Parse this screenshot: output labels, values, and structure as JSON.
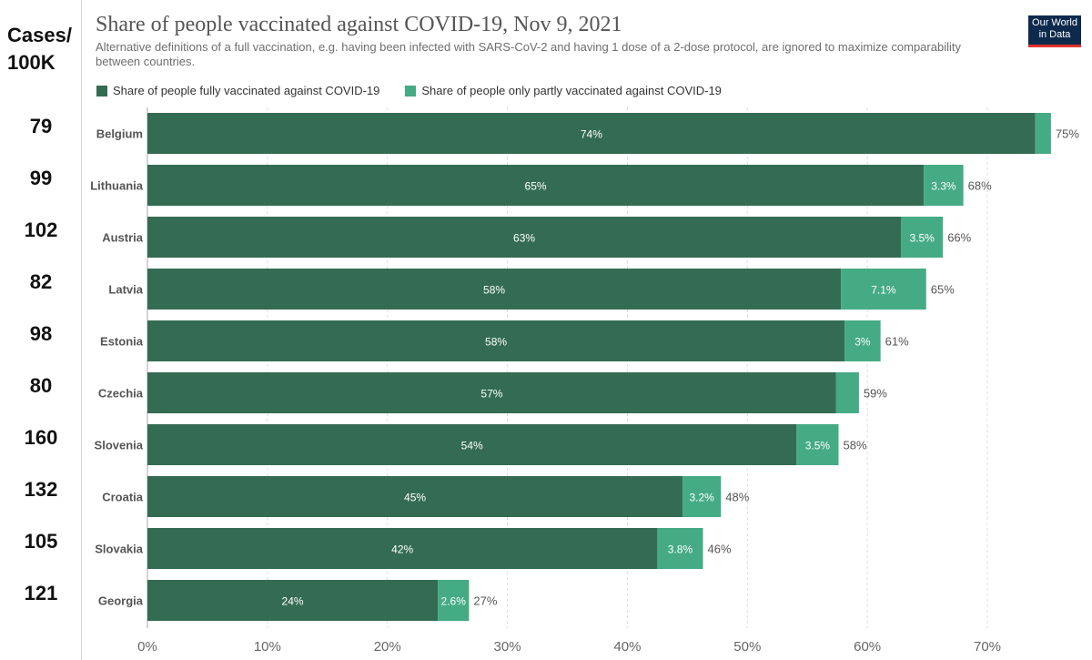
{
  "cases_panel": {
    "header": "Cases/\n100K",
    "values": [
      "79",
      "99",
      "102",
      "82",
      "98",
      "80",
      "160",
      "132",
      "105",
      "121"
    ]
  },
  "header": {
    "title": "Share of people vaccinated against COVID-19, Nov 9, 2021",
    "subtitle": "Alternative definitions of a full vaccination, e.g. having been infected with SARS-CoV-2 and having 1 dose of a 2-dose protocol, are ignored to maximize comparability between countries.",
    "logo_line1": "Our World",
    "logo_line2": "in Data"
  },
  "colors": {
    "full": "#346c53",
    "partial": "#45ab85",
    "gridline": "#dddddd"
  },
  "chart_data": {
    "type": "bar",
    "orientation": "horizontal",
    "stacked": true,
    "title": "Share of people vaccinated against COVID-19, Nov 9, 2021",
    "categories": [
      "Belgium",
      "Lithuania",
      "Austria",
      "Latvia",
      "Estonia",
      "Czechia",
      "Slovenia",
      "Croatia",
      "Slovakia",
      "Georgia"
    ],
    "series": [
      {
        "name": "Share of people fully vaccinated against COVID-19",
        "values": [
          74,
          64.7,
          62.8,
          57.8,
          58.1,
          57.4,
          54.1,
          44.6,
          42.5,
          24.2
        ],
        "labels": [
          "74%",
          "65%",
          "63%",
          "58%",
          "58%",
          "57%",
          "54%",
          "45%",
          "42%",
          "24%"
        ]
      },
      {
        "name": "Share of people only partly vaccinated against COVID-19",
        "values": [
          1.3,
          3.3,
          3.5,
          7.1,
          3.0,
          1.9,
          3.5,
          3.2,
          3.8,
          2.6
        ],
        "labels": [
          "",
          "3.3%",
          "3.5%",
          "7.1%",
          "3%",
          "",
          "3.5%",
          "3.2%",
          "3.8%",
          "2.6%"
        ]
      }
    ],
    "totals": [
      "75%",
      "68%",
      "66%",
      "65%",
      "61%",
      "59%",
      "58%",
      "48%",
      "46%",
      "27%"
    ],
    "xlim": [
      0,
      78
    ],
    "xticks": [
      0,
      10,
      20,
      30,
      40,
      50,
      60,
      70
    ],
    "xtick_labels": [
      "0%",
      "10%",
      "20%",
      "30%",
      "40%",
      "50%",
      "60%",
      "70%"
    ],
    "grid": true,
    "legend": "top-left"
  }
}
